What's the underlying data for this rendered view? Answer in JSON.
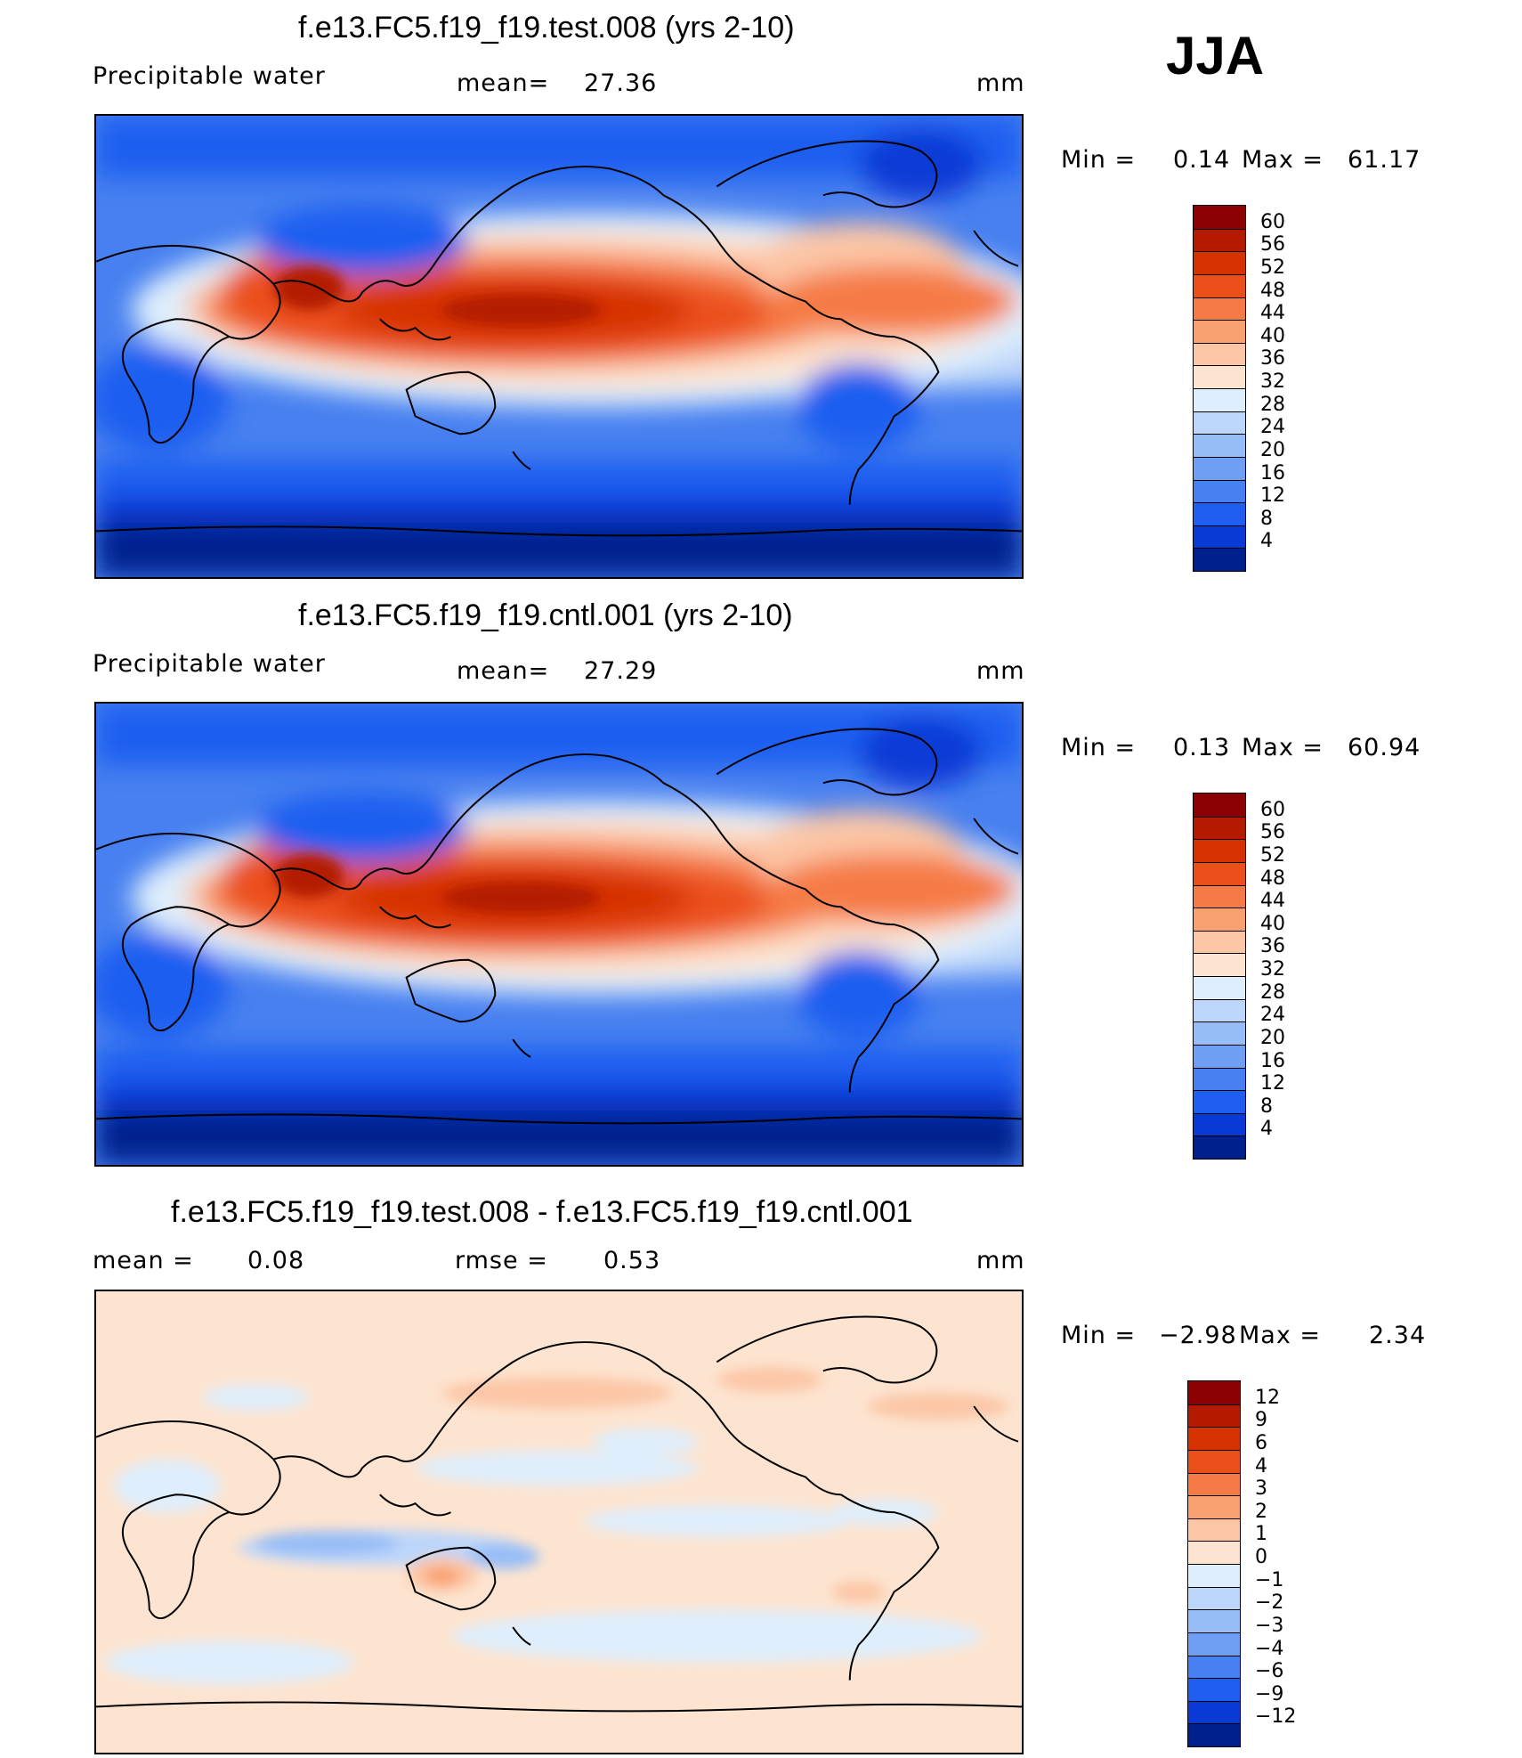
{
  "season": "JJA",
  "panels": [
    {
      "title": "f.e13.FC5.f19_f19.test.008 (yrs 2-10)",
      "left_label": "Precipitable  water",
      "mid_label": "mean=",
      "mid_value": "27.36",
      "units": "mm",
      "minmax": {
        "min_label": "Min  =",
        "min": "0.14",
        "max_label": "Max  =",
        "max": "61.17"
      },
      "colorbar": {
        "levels": [
          "60",
          "56",
          "52",
          "48",
          "44",
          "40",
          "36",
          "32",
          "28",
          "24",
          "20",
          "16",
          "12",
          "8",
          "4"
        ],
        "colors": [
          "#8b0000",
          "#b31a00",
          "#d53200",
          "#eb4f1a",
          "#f57a45",
          "#f9a071",
          "#fcc6a6",
          "#fde4d0",
          "#dfeefc",
          "#bcd6fa",
          "#97bdf7",
          "#6e9ff3",
          "#4780f0",
          "#1f5ef0",
          "#0a3ad6",
          "#00208e"
        ]
      }
    },
    {
      "title": "f.e13.FC5.f19_f19.cntl.001 (yrs 2-10)",
      "left_label": "Precipitable  water",
      "mid_label": "mean=",
      "mid_value": "27.29",
      "units": "mm",
      "minmax": {
        "min_label": "Min  =",
        "min": "0.13",
        "max_label": "Max  =",
        "max": "60.94"
      },
      "colorbar": {
        "levels": [
          "60",
          "56",
          "52",
          "48",
          "44",
          "40",
          "36",
          "32",
          "28",
          "24",
          "20",
          "16",
          "12",
          "8",
          "4"
        ],
        "colors": [
          "#8b0000",
          "#b31a00",
          "#d53200",
          "#eb4f1a",
          "#f57a45",
          "#f9a071",
          "#fcc6a6",
          "#fde4d0",
          "#dfeefc",
          "#bcd6fa",
          "#97bdf7",
          "#6e9ff3",
          "#4780f0",
          "#1f5ef0",
          "#0a3ad6",
          "#00208e"
        ]
      }
    },
    {
      "title": "f.e13.FC5.f19_f19.test.008 - f.e13.FC5.f19_f19.cntl.001",
      "left_label": "mean  =",
      "left_value": "0.08",
      "mid_label": "rmse  =",
      "mid_value": "0.53",
      "units": "mm",
      "minmax": {
        "min_label": "Min  =",
        "min": "−2.98",
        "max_label": "Max  =",
        "max": "2.34"
      },
      "colorbar": {
        "levels": [
          "12",
          "9",
          "6",
          "4",
          "3",
          "2",
          "1",
          "0",
          "−1",
          "−2",
          "−3",
          "−4",
          "−6",
          "−9",
          "−12"
        ],
        "colors": [
          "#8b0000",
          "#b31a00",
          "#d53200",
          "#eb4f1a",
          "#f57a45",
          "#f9a071",
          "#fcc6a6",
          "#fde4d0",
          "#dfeefc",
          "#bcd6fa",
          "#97bdf7",
          "#6e9ff3",
          "#4780f0",
          "#1f5ef0",
          "#0a3ad6",
          "#00208e"
        ]
      }
    }
  ]
}
